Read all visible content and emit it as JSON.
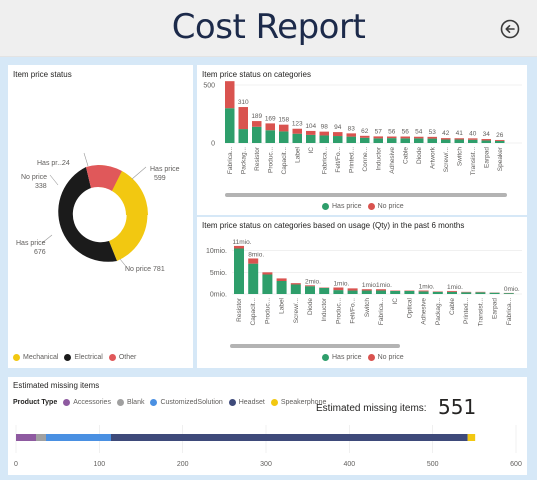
{
  "header": {
    "title": "Cost Report",
    "back_icon": "arrow-left-circle-icon"
  },
  "colors": {
    "has_price": "#f2c811",
    "no_price": "#1b1b1b",
    "other": "#e0585a",
    "green": "#2e9e6b",
    "red": "#d9534f",
    "accessories": "#8e5aa0",
    "blank": "#a0a0a0",
    "customized": "#4a90e2",
    "headset": "#3e4a7a",
    "speakerphone": "#f2c811"
  },
  "donut": {
    "title": "Item price status",
    "legend": [
      {
        "label": "Mechanical",
        "color": "#f2c811"
      },
      {
        "label": "Electrical",
        "color": "#1b1b1b"
      },
      {
        "label": "Other",
        "color": "#e0585a"
      }
    ],
    "labels": {
      "has_price": "Has price",
      "has_price_val": "599",
      "no_price": "No price",
      "no_price_val": "781",
      "no_price2": "No price",
      "no_price2_val": "338",
      "has_price2": "Has price",
      "has_price2_val": "676",
      "has_pr_short": "Has pr...",
      "has_pr_val": "24"
    }
  },
  "chart_data": [
    {
      "type": "bar",
      "title": "Item price status on categories",
      "categories": [
        "Fabrica...",
        "Packag...",
        "Resistor",
        "Produc...",
        "Capacit...",
        "Label",
        "IC",
        "Fabrica...",
        "Felt/Fo...",
        "Printed...",
        "Conne...",
        "Inductor",
        "Adhesive",
        "Cable",
        "Diode",
        "Artwork",
        "Screw/...",
        "Switch",
        "Transist...",
        "Earpad",
        "Speaker"
      ],
      "totals": [
        533,
        310,
        189,
        169,
        158,
        123,
        104,
        98,
        94,
        83,
        62,
        57,
        56,
        56,
        54,
        53,
        42,
        41,
        40,
        34,
        26
      ],
      "series": [
        {
          "name": "Has price",
          "values": [
            300,
            120,
            140,
            110,
            100,
            80,
            70,
            65,
            60,
            55,
            45,
            40,
            42,
            40,
            40,
            38,
            30,
            30,
            28,
            22,
            18
          ]
        },
        {
          "name": "No price",
          "values": [
            233,
            190,
            49,
            59,
            58,
            43,
            34,
            33,
            34,
            28,
            17,
            17,
            14,
            16,
            14,
            15,
            12,
            11,
            12,
            12,
            8
          ]
        }
      ],
      "yticks": [
        "500",
        "0"
      ],
      "ylim": [
        0,
        600
      ]
    },
    {
      "type": "bar",
      "title": "Item price status on categories based on usage (Qty) in the past 6 months",
      "categories": [
        "Resistor",
        "Capacit...",
        "Produc...",
        "Label",
        "Screw/...",
        "Diode",
        "Inductor",
        "Produc...",
        "Felt/Fo...",
        "Switch",
        "Fabrica...",
        "IC",
        "Optical",
        "Adhesive",
        "Packag...",
        "Cable",
        "Printed...",
        "Transist...",
        "Earpad",
        "Fabrica..."
      ],
      "labels": [
        "11mio.",
        "8mio.",
        "",
        "",
        "",
        "2mio.",
        "",
        "1mio.",
        "",
        "1mio.",
        "1mio.",
        "",
        "",
        "1mio.",
        "",
        "1mio.",
        "",
        "",
        "",
        "0mio."
      ],
      "series": [
        {
          "name": "Has price",
          "values": [
            10.5,
            7.0,
            4.5,
            3.0,
            2.2,
            1.8,
            1.4,
            0.9,
            0.8,
            0.8,
            0.8,
            0.7,
            0.7,
            0.6,
            0.5,
            0.5,
            0.4,
            0.4,
            0.3,
            0.2
          ]
        },
        {
          "name": "No price",
          "values": [
            0.6,
            1.2,
            0.5,
            0.6,
            0.3,
            0.2,
            0.1,
            0.6,
            0.5,
            0.3,
            0.3,
            0.1,
            0.1,
            0.2,
            0.1,
            0.2,
            0.1,
            0.1,
            0.05,
            0.05
          ]
        }
      ],
      "yticks": [
        "10mio.",
        "5mio.",
        "0mio."
      ],
      "ylim": [
        0,
        12
      ]
    },
    {
      "type": "bar",
      "title": "Estimated missing items",
      "legend_title": "Product Type",
      "series": [
        {
          "name": "Accessories",
          "values": [
            24
          ]
        },
        {
          "name": "Blank",
          "values": [
            12
          ]
        },
        {
          "name": "CustomizedSolution",
          "values": [
            78
          ]
        },
        {
          "name": "Headset",
          "values": [
            428
          ]
        },
        {
          "name": "Speakerphone",
          "values": [
            9
          ]
        }
      ],
      "xticks": [
        "0",
        "100",
        "200",
        "300",
        "400",
        "500",
        "600"
      ],
      "xlim": [
        0,
        600
      ]
    }
  ],
  "legend": {
    "has_price": "Has price",
    "no_price": "No price"
  },
  "kpi": {
    "label": "Estimated missing items:",
    "value": "551"
  }
}
